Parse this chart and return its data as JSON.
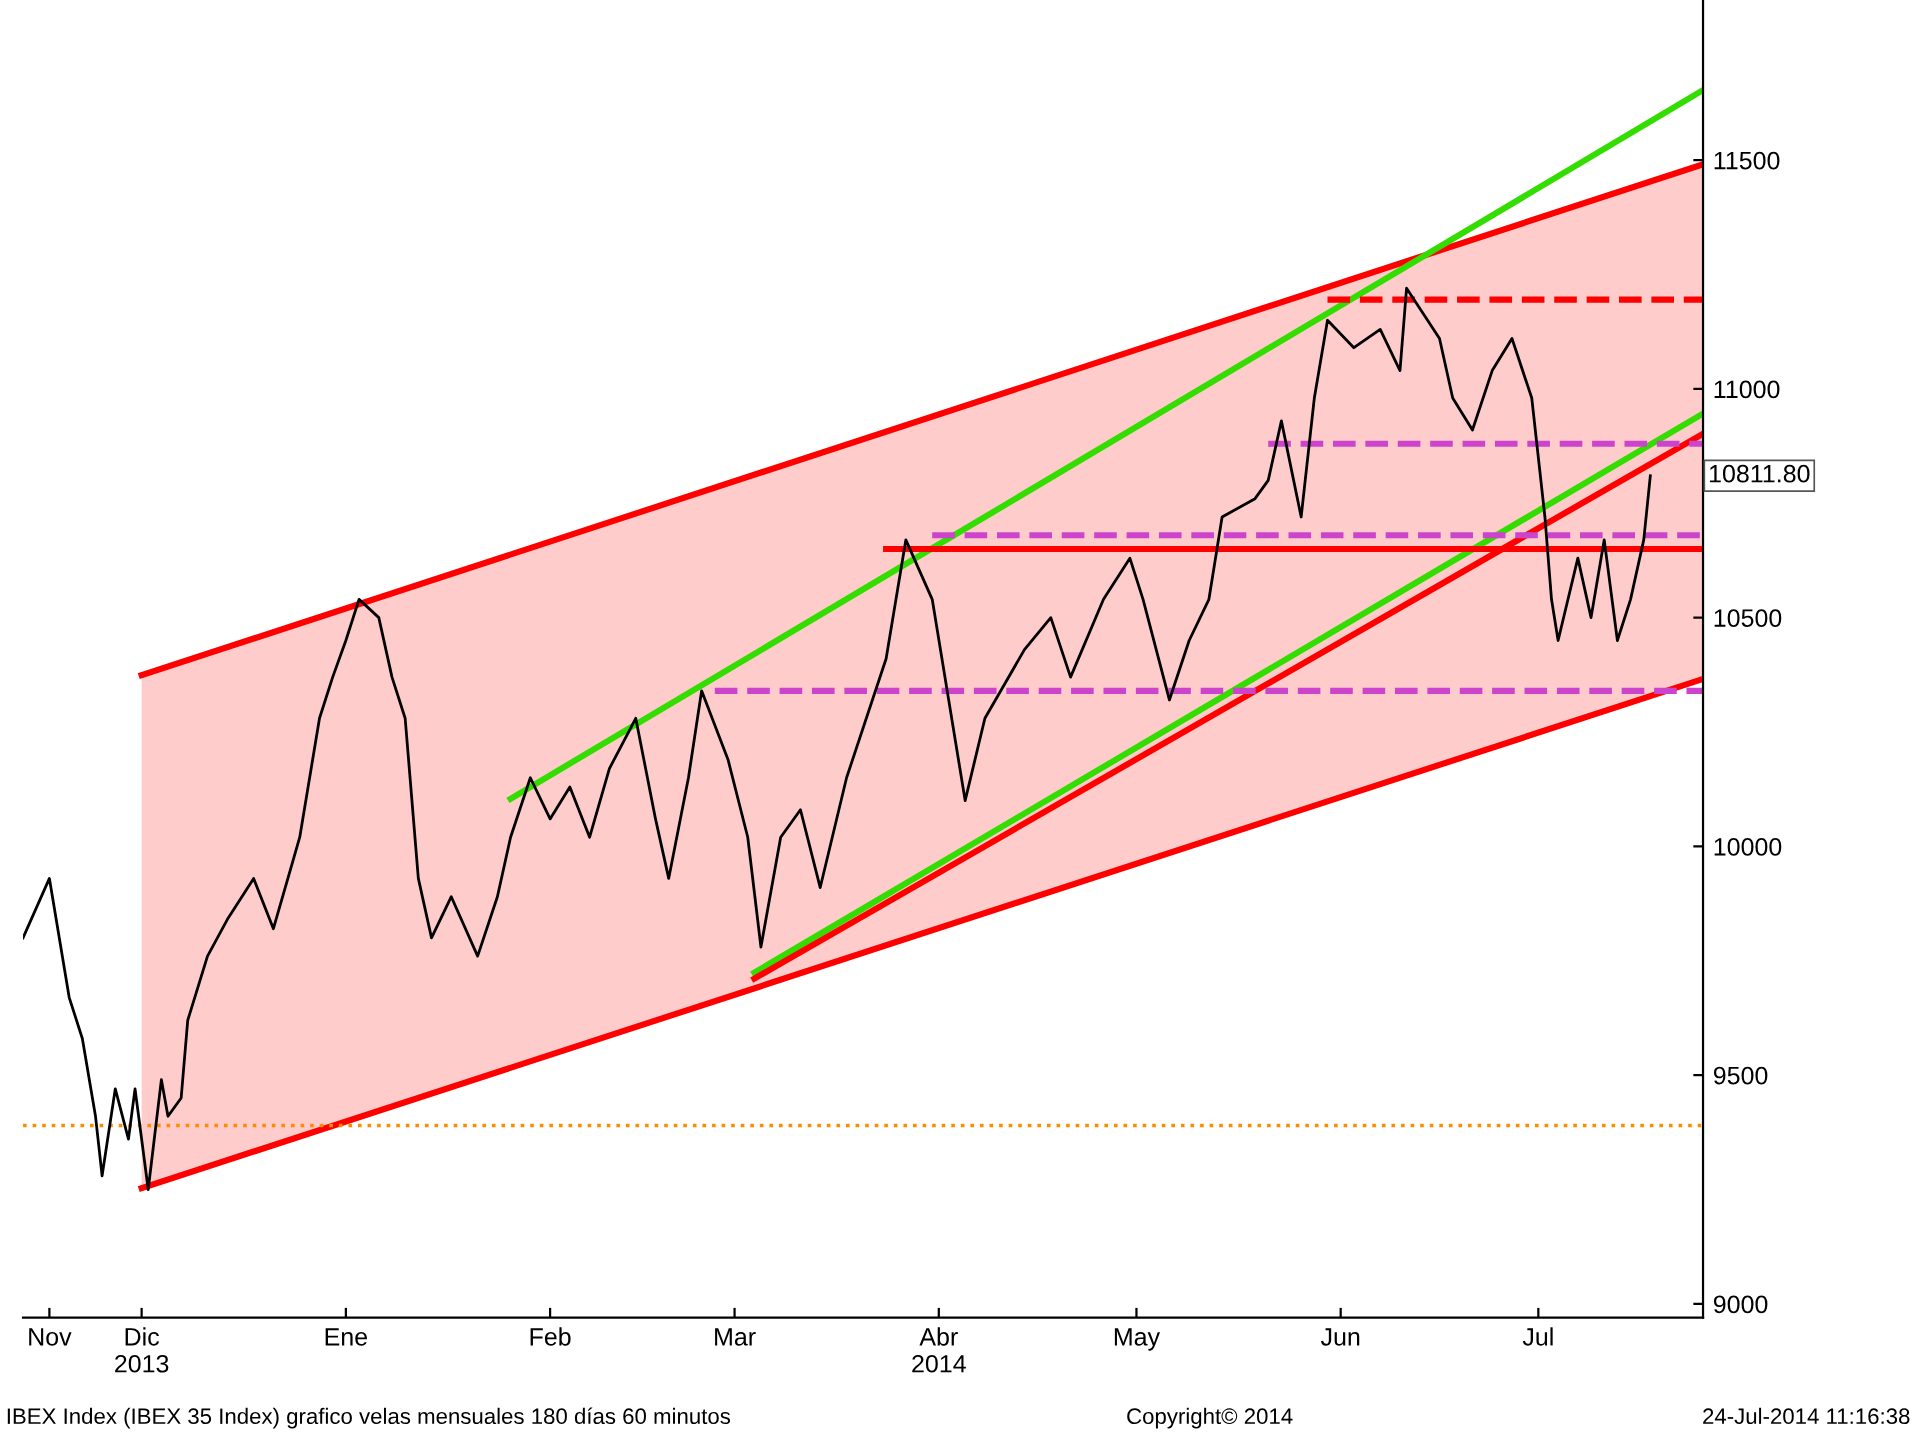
{
  "chart_data": {
    "type": "line",
    "xlim": [
      "2013-11-13",
      "2014-07-26"
    ],
    "xticks": [
      {
        "value": "2013-11-17",
        "label": "Nov"
      },
      {
        "value": "2013-12-01",
        "label": "Dic\n2013"
      },
      {
        "value": "2014-01-01",
        "label": "Ene"
      },
      {
        "value": "2014-02-01",
        "label": "Feb"
      },
      {
        "value": "2014-03-01",
        "label": "Mar"
      },
      {
        "value": "2014-04-01",
        "label": "Abr\n2014"
      },
      {
        "value": "2014-05-01",
        "label": "May"
      },
      {
        "value": "2014-06-01",
        "label": "Jun"
      },
      {
        "value": "2014-07-01",
        "label": "Jul"
      }
    ],
    "ylim": [
      8970,
      11850
    ],
    "yticks": [
      9000,
      9500,
      10000,
      10500,
      11000,
      11500
    ],
    "series": [
      {
        "color": "#ff0000",
        "x": [
          "2013-12-01",
          "2014-07-26"
        ],
        "values": [
          10374,
          11491
        ],
        "lower": [
          9253,
          10366
        ],
        "upper": [
          10374,
          11491
        ]
      },
      {
        "color": "#ff0000",
        "x": [
          "2013-12-01",
          "2014-07-26"
        ],
        "values": [
          9253,
          10366
        ]
      },
      {
        "color": "#33dd00",
        "x": [
          "2014-01-26",
          "2014-07-26"
        ],
        "values": [
          10104,
          11653
        ]
      },
      {
        "color": "#33dd00",
        "x": [
          "2014-03-04",
          "2014-07-26"
        ],
        "values": [
          9724,
          10946
        ]
      },
      {
        "color": "#ff0000",
        "x": [
          "2014-03-04",
          "2014-07-26"
        ],
        "values": [
          9711,
          10902
        ]
      },
      {
        "color": "#ff0000",
        "line_style": "dashed",
        "x": [
          "2014-05-30",
          "2014-07-26"
        ],
        "values": [
          11195,
          11195
        ]
      },
      {
        "color": "#cc44cc",
        "line_style": "dashed",
        "x": [
          "2014-05-21",
          "2014-07-26"
        ],
        "values": [
          10880,
          10880
        ]
      },
      {
        "color": "#cc44cc",
        "line_style": "dashed",
        "x": [
          "2014-03-31",
          "2014-07-26"
        ],
        "values": [
          10680,
          10680
        ]
      },
      {
        "color": "#ff0000",
        "x": [
          "2014-03-24",
          "2014-07-26"
        ],
        "values": [
          10650,
          10650
        ]
      },
      {
        "color": "#cc44cc",
        "line_style": "dashed",
        "x": [
          "2014-02-26",
          "2014-07-26"
        ],
        "values": [
          10340,
          10340
        ]
      },
      {
        "color": "#000000",
        "x": [
          "2013-11-13",
          "2013-11-17",
          "2013-11-20",
          "2013-11-22",
          "2013-11-24",
          "2013-11-25",
          "2013-11-27",
          "2013-11-29",
          "2013-11-30",
          "2013-12-02",
          "2013-12-04",
          "2013-12-05",
          "2013-12-07",
          "2013-12-08",
          "2013-12-11",
          "2013-12-14",
          "2013-12-18",
          "2013-12-21",
          "2013-12-24",
          "2013-12-25",
          "2013-12-28",
          "2013-12-30",
          "2014-01-01",
          "2014-01-03",
          "2014-01-06",
          "2014-01-08",
          "2014-01-10",
          "2014-01-12",
          "2014-01-14",
          "2014-01-17",
          "2014-01-21",
          "2014-01-24",
          "2014-01-26",
          "2014-01-29",
          "2014-02-01",
          "2014-02-04",
          "2014-02-07",
          "2014-02-10",
          "2014-02-14",
          "2014-02-17",
          "2014-02-19",
          "2014-02-22",
          "2014-02-24",
          "2014-02-28",
          "2014-03-03",
          "2014-03-05",
          "2014-03-08",
          "2014-03-11",
          "2014-03-14",
          "2014-03-18",
          "2014-03-24",
          "2014-03-27",
          "2014-03-31",
          "2014-04-05",
          "2014-04-08",
          "2014-04-14",
          "2014-04-18",
          "2014-04-21",
          "2014-04-26",
          "2014-04-30",
          "2014-05-02",
          "2014-05-06",
          "2014-05-09",
          "2014-05-12",
          "2014-05-14",
          "2014-05-19",
          "2014-05-21",
          "2014-05-23",
          "2014-05-26",
          "2014-05-28",
          "2014-05-30",
          "2014-06-03",
          "2014-06-07",
          "2014-06-10",
          "2014-06-11",
          "2014-06-16",
          "2014-06-18",
          "2014-06-21",
          "2014-06-24",
          "2014-06-27",
          "2014-06-30",
          "2014-07-02",
          "2014-07-03",
          "2014-07-04",
          "2014-07-07",
          "2014-07-09",
          "2014-07-11",
          "2014-07-13",
          "2014-07-15",
          "2014-07-17",
          "2014-07-18"
        ],
        "values": [
          9800,
          9930,
          9670,
          9580,
          9410,
          9280,
          9470,
          9360,
          9470,
          9250,
          9490,
          9410,
          9450,
          9620,
          9760,
          9840,
          9930,
          9820,
          9970,
          10020,
          10280,
          10370,
          10450,
          10540,
          10500,
          10370,
          10280,
          9930,
          9800,
          9890,
          9760,
          9890,
          10020,
          10150,
          10060,
          10130,
          10020,
          10170,
          10280,
          10060,
          9930,
          10150,
          10340,
          10190,
          10020,
          9780,
          10020,
          10080,
          9910,
          10150,
          10410,
          10670,
          10540,
          10100,
          10280,
          10430,
          10500,
          10370,
          10540,
          10630,
          10540,
          10320,
          10450,
          10540,
          10720,
          10760,
          10800,
          10930,
          10720,
          10980,
          11150,
          11090,
          11130,
          11040,
          11220,
          11110,
          10980,
          10910,
          11040,
          11110,
          10980,
          10720,
          10540,
          10450,
          10630,
          10500,
          10670,
          10450,
          10540,
          10670,
          10810
        ]
      }
    ],
    "ref_lines": [
      {
        "axis": "y",
        "value": 9390,
        "color": "#ff8c00",
        "line_style": "dotted"
      }
    ],
    "annotations": [
      {
        "text": "10811.80",
        "x": "2014-07-18",
        "y": 10810
      },
      "IBEX Index (IBEX 35 Index) grafico velas mensuales 180 días 60 minutos",
      "Copyright© 2014",
      "24-Jul-2014 11:16:38"
    ]
  }
}
